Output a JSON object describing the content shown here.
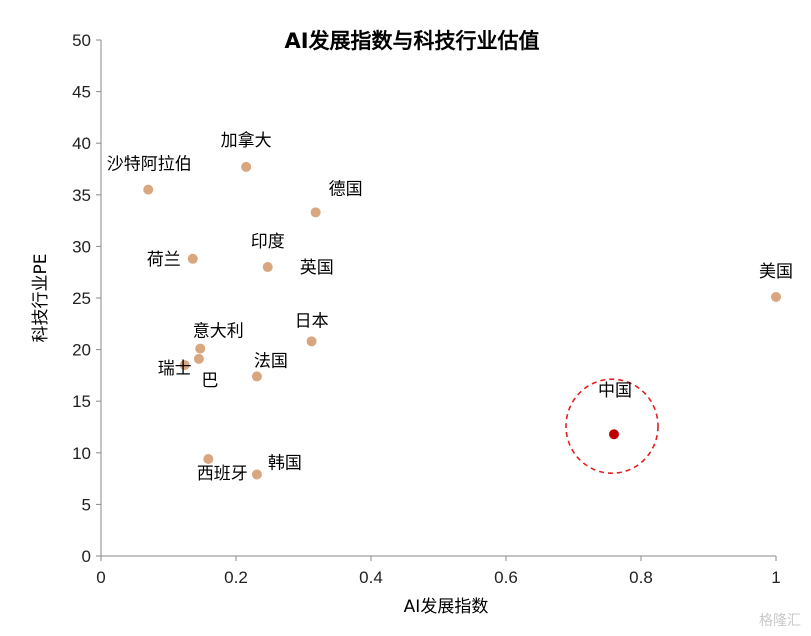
{
  "chart_data": {
    "type": "scatter",
    "title": "AI发展指数与科技行业估值",
    "xlabel": "AI发展指数",
    "ylabel": "科技行业PE",
    "xlim": [
      0,
      1
    ],
    "ylim": [
      0,
      50
    ],
    "x_ticks": [
      "0",
      "0.2",
      "0.4",
      "0.6",
      "0.8",
      "1"
    ],
    "y_ticks": [
      "0",
      "5",
      "10",
      "15",
      "20",
      "25",
      "30",
      "35",
      "40",
      "45",
      "50"
    ],
    "grid": false,
    "colors": {
      "default": "#D9A77F",
      "highlight": "#C00000",
      "circle": "#E02020"
    },
    "points": [
      {
        "label": "沙特阿拉伯",
        "x": 0.07,
        "y": 35.5
      },
      {
        "label": "加拿大",
        "x": 0.215,
        "y": 37.7
      },
      {
        "label": "德国",
        "x": 0.318,
        "y": 33.3
      },
      {
        "label": "荷兰",
        "x": 0.136,
        "y": 28.8
      },
      {
        "label": "印度",
        "x": 0.247,
        "y": 28.0
      },
      {
        "label": "英国",
        "x": 0.247,
        "y": 28.0,
        "label_only": true
      },
      {
        "label": "美国",
        "x": 1.0,
        "y": 25.1
      },
      {
        "label": "日本",
        "x": 0.312,
        "y": 20.8
      },
      {
        "label": "意大利",
        "x": 0.147,
        "y": 20.1
      },
      {
        "label": "瑞士",
        "x": 0.124,
        "y": 18.5
      },
      {
        "label": "巴",
        "x": 0.145,
        "y": 19.1
      },
      {
        "label": "法国",
        "x": 0.231,
        "y": 17.4
      },
      {
        "label": "中国",
        "x": 0.76,
        "y": 11.8,
        "highlight": true
      },
      {
        "label": "西班牙",
        "x": 0.159,
        "y": 9.4
      },
      {
        "label": "韩国",
        "x": 0.231,
        "y": 7.9
      }
    ]
  },
  "watermark": "格隆汇"
}
